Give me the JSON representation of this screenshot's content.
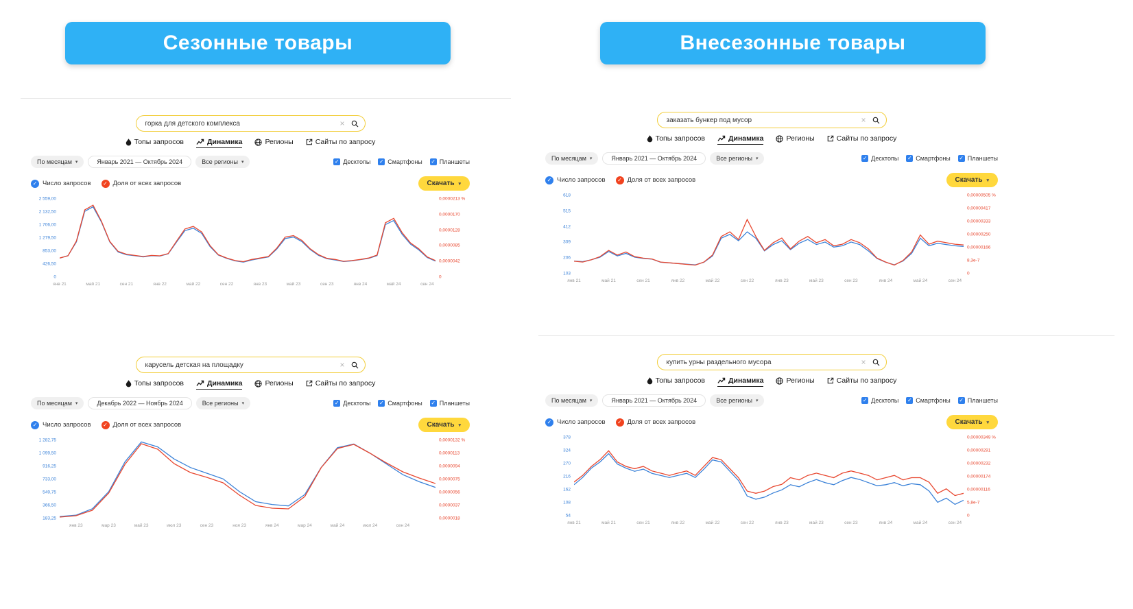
{
  "page": {
    "left_header": "Сезонные товары",
    "right_header": "Внесезонные товары"
  },
  "colors": {
    "header_bg": "#2fb1f5",
    "accent_yellow": "#ffd83d",
    "search_border_yellow": "#f2cd37",
    "queries_series_blue": "#2f80ed",
    "share_series_red": "#e8472f",
    "checkbox_blue": "#2f80ed"
  },
  "common": {
    "tabs": [
      {
        "label": "Топы запросов",
        "icon": "flame-icon",
        "active": false
      },
      {
        "label": "Динамика",
        "icon": "trend-icon",
        "active": true
      },
      {
        "label": "Регионы",
        "icon": "globe-icon",
        "active": false
      },
      {
        "label": "Сайты по запросу",
        "icon": "external-link-icon",
        "active": false
      }
    ],
    "granularity_label": "По месяцам",
    "regions_label": "Все регионы",
    "device_filters": [
      "Десктопы",
      "Смартфоны",
      "Планшеты"
    ],
    "legend": [
      {
        "label": "Число запросов",
        "color": "#2f80ed"
      },
      {
        "label": "Доля от всех запросов",
        "color": "#e8472f"
      }
    ],
    "download_label": "Скачать",
    "clear_glyph": "×",
    "caret_glyph": "▾",
    "check_glyph": "✓"
  },
  "panels": [
    {
      "search": {
        "value": "горка для детского комплекса"
      },
      "period": "Январь 2021 — Октябрь 2024",
      "chart_data": {
        "type": "line",
        "x_ticks": [
          "янв 21",
          "май 21",
          "сен 21",
          "янв 22",
          "май 22",
          "сен 22",
          "янв 23",
          "май 23",
          "сен 23",
          "янв 24",
          "май 24",
          "сен 24"
        ],
        "tick_indices": [
          0,
          4,
          8,
          12,
          16,
          20,
          24,
          28,
          32,
          36,
          40,
          44
        ],
        "left_axis_labels": [
          "2 559,00",
          "2 132,50",
          "1 706,00",
          "1 279,50",
          "853,00",
          "426,50",
          "0"
        ],
        "right_axis_labels": [
          "0,0000213 %",
          "0,0000170",
          "0,0000128",
          "0,0000085",
          "0,0000042",
          "0"
        ],
        "ylim_left": [
          0,
          2559
        ],
        "ylim_right": [
          0,
          2.13e-05
        ],
        "series": [
          {
            "name": "Число запросов",
            "axis": "left",
            "color": "#3b82d8",
            "values": [
              620,
              700,
              1150,
              2150,
              2300,
              1800,
              1150,
              820,
              730,
              700,
              660,
              700,
              690,
              760,
              1150,
              1520,
              1600,
              1430,
              1000,
              720,
              610,
              530,
              490,
              560,
              610,
              660,
              920,
              1260,
              1310,
              1160,
              900,
              710,
              600,
              560,
              510,
              530,
              570,
              610,
              700,
              1720,
              1850,
              1400,
              1080,
              890,
              640,
              520
            ]
          },
          {
            "name": "Доля от всех запросов",
            "axis": "right",
            "color": "#e8472f",
            "values": [
              5.2e-06,
              5.8e-06,
              9.8e-06,
              1.83e-05,
              1.96e-05,
              1.52e-05,
              9.7e-06,
              7e-06,
              6.2e-06,
              5.9e-06,
              5.6e-06,
              5.9e-06,
              5.8e-06,
              6.4e-06,
              9.8e-06,
              1.31e-05,
              1.38e-05,
              1.23e-05,
              8.6e-06,
              6.1e-06,
              5.2e-06,
              4.5e-06,
              4.2e-06,
              4.8e-06,
              5.2e-06,
              5.6e-06,
              7.9e-06,
              1.09e-05,
              1.13e-05,
              1e-05,
              7.7e-06,
              6.1e-06,
              5.1e-06,
              4.8e-06,
              4.3e-06,
              4.5e-06,
              4.8e-06,
              5.2e-06,
              6e-06,
              1.48e-05,
              1.6e-05,
              1.21e-05,
              9.3e-06,
              7.7e-06,
              5.5e-06,
              4.5e-06
            ]
          }
        ]
      }
    },
    {
      "search": {
        "value": "карусель детская на площадку"
      },
      "period": "Декабрь 2022 — Ноябрь 2024",
      "chart_data": {
        "type": "line",
        "x_ticks": [
          "янв 23",
          "мар 23",
          "май 23",
          "июл 23",
          "сен 23",
          "ноя 23",
          "янв 24",
          "мар 24",
          "май 24",
          "июл 24",
          "сен 24"
        ],
        "tick_indices": [
          1,
          3,
          5,
          7,
          9,
          11,
          13,
          15,
          17,
          19,
          21
        ],
        "left_axis_labels": [
          "1 282,75",
          "1 099,50",
          "916,25",
          "733,00",
          "549,75",
          "366,50",
          "183,25"
        ],
        "right_axis_labels": [
          "0,0000132 %",
          "0,0000113",
          "0,0000094",
          "0,0000075",
          "0,0000056",
          "0,0000037",
          "0,0000018"
        ],
        "ylim_left": [
          183.25,
          1282.75
        ],
        "ylim_right": [
          1.8e-06,
          1.32e-05
        ],
        "series": [
          {
            "name": "Число запросов",
            "axis": "left",
            "color": "#3b82d8",
            "values": [
              210,
              230,
              320,
              560,
              980,
              1260,
              1190,
              1020,
              900,
              820,
              740,
              560,
              420,
              380,
              360,
              520,
              900,
              1180,
              1230,
              1100,
              950,
              800,
              700,
              620
            ]
          },
          {
            "name": "Доля от всех запросов",
            "axis": "right",
            "color": "#e8472f",
            "values": [
              2e-06,
              2.2e-06,
              3e-06,
              5.5e-06,
              9.7e-06,
              1.27e-05,
              1.19e-05,
              9.8e-06,
              8.5e-06,
              7.8e-06,
              7e-06,
              5.2e-06,
              3.7e-06,
              3.3e-06,
              3.2e-06,
              5e-06,
              9.2e-06,
              1.2e-05,
              1.26e-05,
              1.13e-05,
              9.9e-06,
              8.6e-06,
              7.7e-06,
              6.9e-06
            ]
          }
        ]
      }
    },
    {
      "search": {
        "value": "заказать бункер под мусор"
      },
      "period": "Январь 2021 — Октябрь 2024",
      "chart_data": {
        "type": "line",
        "x_ticks": [
          "янв 21",
          "май 21",
          "сен 21",
          "янв 22",
          "май 22",
          "сен 22",
          "янв 23",
          "май 23",
          "сен 23",
          "янв 24",
          "май 24",
          "сен 24"
        ],
        "tick_indices": [
          0,
          4,
          8,
          12,
          16,
          20,
          24,
          28,
          32,
          36,
          40,
          44
        ],
        "left_axis_labels": [
          "618",
          "515",
          "412",
          "309",
          "206",
          "103"
        ],
        "right_axis_labels": [
          "0,00000505 %",
          "0,00000417",
          "0,00000333",
          "0,00000250",
          "0,00000166",
          "8,3e-7",
          "0"
        ],
        "ylim_left": [
          0,
          618
        ],
        "ylim_right": [
          0,
          5.05e-06
        ],
        "series": [
          {
            "name": "Число запросов",
            "axis": "left",
            "color": "#3b82d8",
            "values": [
              100,
              95,
              110,
              130,
              175,
              140,
              160,
              130,
              120,
              115,
              90,
              85,
              80,
              75,
              70,
              90,
              140,
              280,
              310,
              260,
              330,
              280,
              180,
              230,
              260,
              190,
              240,
              270,
              230,
              250,
              210,
              220,
              250,
              230,
              180,
              120,
              90,
              70,
              100,
              160,
              280,
              220,
              240,
              230,
              220,
              215
            ]
          },
          {
            "name": "Доля от всех запросов",
            "axis": "right",
            "color": "#e8472f",
            "values": [
              8e-07,
              7.5e-07,
              9e-07,
              1.1e-06,
              1.5e-06,
              1.2e-06,
              1.4e-06,
              1.1e-06,
              1e-06,
              9.5e-07,
              7.5e-07,
              7e-07,
              6.5e-07,
              6e-07,
              5.5e-07,
              7.5e-07,
              1.2e-06,
              2.4e-06,
              2.7e-06,
              2.2e-06,
              3.5e-06,
              2.4e-06,
              1.5e-06,
              2e-06,
              2.3e-06,
              1.6e-06,
              2.1e-06,
              2.4e-06,
              2e-06,
              2.2e-06,
              1.8e-06,
              1.9e-06,
              2.2e-06,
              2e-06,
              1.6e-06,
              1e-06,
              7.5e-07,
              5.5e-07,
              8.5e-07,
              1.4e-06,
              2.5e-06,
              1.9e-06,
              2.1e-06,
              2e-06,
              1.9e-06,
              1.85e-06
            ]
          }
        ]
      }
    },
    {
      "search": {
        "value": "купить урны раздельного мусора"
      },
      "period": "Январь 2021 — Октябрь 2024",
      "chart_data": {
        "type": "line",
        "x_ticks": [
          "янв 21",
          "май 21",
          "сен 21",
          "янв 22",
          "май 22",
          "сен 22",
          "янв 23",
          "май 23",
          "сен 23",
          "янв 24",
          "май 24",
          "сен 24"
        ],
        "tick_indices": [
          0,
          4,
          8,
          12,
          16,
          20,
          24,
          28,
          32,
          36,
          40,
          44
        ],
        "left_axis_labels": [
          "378",
          "324",
          "270",
          "216",
          "162",
          "108",
          "54"
        ],
        "right_axis_labels": [
          "0,00000349 %",
          "0,00000291",
          "0,00000232",
          "0,00000174",
          "0,00000116",
          "5,8e-7",
          "0"
        ],
        "ylim_left": [
          0,
          378
        ],
        "ylim_right": [
          0,
          3.49e-06
        ],
        "series": [
          {
            "name": "Число запросов",
            "axis": "left",
            "color": "#3b82d8",
            "values": [
              150,
              185,
              230,
              260,
              300,
              250,
              230,
              215,
              225,
              205,
              195,
              185,
              195,
              205,
              185,
              225,
              270,
              260,
              215,
              170,
              95,
              80,
              90,
              110,
              125,
              150,
              140,
              160,
              175,
              160,
              150,
              170,
              185,
              175,
              160,
              145,
              150,
              160,
              145,
              155,
              150,
              120,
              65,
              85,
              55,
              75
            ]
          },
          {
            "name": "Доля от всех запросов",
            "axis": "right",
            "color": "#e8472f",
            "values": [
              1.5e-06,
              1.8e-06,
              2.2e-06,
              2.5e-06,
              2.9e-06,
              2.4e-06,
              2.2e-06,
              2.1e-06,
              2.2e-06,
              2e-06,
              1.9e-06,
              1.8e-06,
              1.9e-06,
              2e-06,
              1.8e-06,
              2.2e-06,
              2.6e-06,
              2.5e-06,
              2.1e-06,
              1.7e-06,
              1.1e-06,
              1e-06,
              1.1e-06,
              1.3e-06,
              1.4e-06,
              1.7e-06,
              1.6e-06,
              1.8e-06,
              1.9e-06,
              1.8e-06,
              1.7e-06,
              1.9e-06,
              2e-06,
              1.9e-06,
              1.8e-06,
              1.6e-06,
              1.7e-06,
              1.8e-06,
              1.6e-06,
              1.7e-06,
              1.7e-06,
              1.5e-06,
              1e-06,
              1.2e-06,
              9e-07,
              1e-06
            ]
          }
        ]
      }
    }
  ]
}
